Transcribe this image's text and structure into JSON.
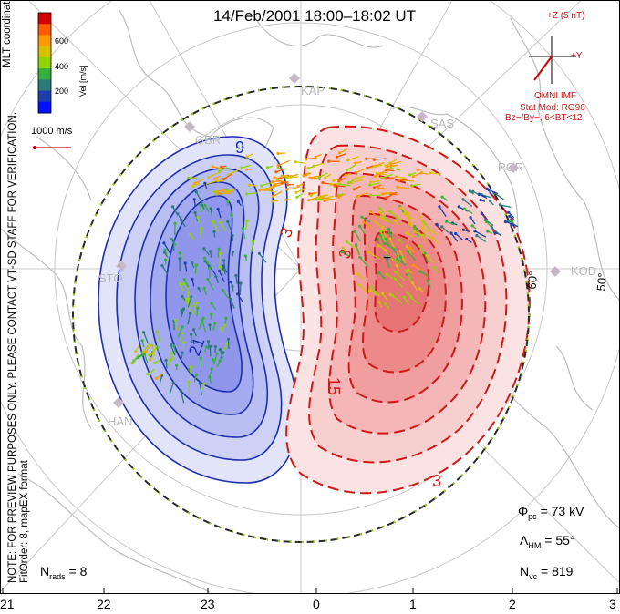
{
  "title": "14/Feb/2001 18:00–18:02 UT",
  "side_note": {
    "line1": "NOTE: FOR PREVIEW PURPOSES ONLY. PLEASE CONTACT VT‑SD STAFF FOR VERIFICATION.",
    "line2": "FitOrder: 8, mapEX format"
  },
  "coords_label": "MLT coordinates",
  "colorbar": {
    "axis_label": "Vel [m/s]",
    "ticks": [
      "600",
      "400",
      "200"
    ],
    "colors": [
      "#d40000",
      "#ff5a00",
      "#ff9a00",
      "#d8c000",
      "#8fd400",
      "#36b03c",
      "#2d7a7a",
      "#1c3fb0",
      "#0010ff"
    ]
  },
  "scale": {
    "label": "1000 m/s"
  },
  "imf": {
    "z_label": "+Z (5 nT)",
    "y_label": "+Y",
    "source": "OMNI IMF",
    "model": "Stat Mod: RG96",
    "conditions": "Bz−/By−, 6<BT<12"
  },
  "stations": [
    "KAP",
    "SAS",
    "PGR",
    "KOD",
    "STO",
    "HAN",
    "GBR"
  ],
  "latitude_labels": [
    "60°",
    "50°"
  ],
  "contour_labels": [
    "9",
    "3",
    "21",
    "3",
    "15",
    "3"
  ],
  "stats": {
    "phi_pc": "= 73 kV",
    "lambda_hm": "= 55°",
    "n_vc": "= 819",
    "n_rads": "= 8"
  },
  "mlt_ticks": [
    "21",
    "22",
    "23",
    "0",
    "1",
    "2",
    "3"
  ],
  "colors": {
    "negative_fill": "#8f96ee",
    "negative_line": "#1d2fb0",
    "positive_fill": "#f08888",
    "positive_line": "#d01818",
    "hmb": "#2a2a2a",
    "grid": "#c8c8c8"
  }
}
